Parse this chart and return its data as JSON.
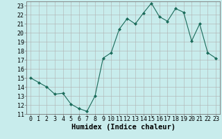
{
  "xlabel": "Humidex (Indice chaleur)",
  "x": [
    0,
    1,
    2,
    3,
    4,
    5,
    6,
    7,
    8,
    9,
    10,
    11,
    12,
    13,
    14,
    15,
    16,
    17,
    18,
    19,
    20,
    21,
    22,
    23
  ],
  "y": [
    15.0,
    14.5,
    14.0,
    13.2,
    13.3,
    12.1,
    11.6,
    11.3,
    13.0,
    17.2,
    17.8,
    20.4,
    21.6,
    21.0,
    22.2,
    23.3,
    21.8,
    21.3,
    22.7,
    22.3,
    19.1,
    21.0,
    17.8,
    17.2
  ],
  "line_color": "#1a6b5a",
  "marker": "D",
  "marker_size": 2,
  "bg_color": "#c8ecec",
  "grid_color": "#b0b0b0",
  "ylim": [
    11,
    23.5
  ],
  "xlim": [
    -0.5,
    23.5
  ],
  "yticks": [
    11,
    12,
    13,
    14,
    15,
    16,
    17,
    18,
    19,
    20,
    21,
    22,
    23
  ],
  "xticks": [
    0,
    1,
    2,
    3,
    4,
    5,
    6,
    7,
    8,
    9,
    10,
    11,
    12,
    13,
    14,
    15,
    16,
    17,
    18,
    19,
    20,
    21,
    22,
    23
  ],
  "tick_fontsize": 6,
  "label_fontsize": 7.5
}
